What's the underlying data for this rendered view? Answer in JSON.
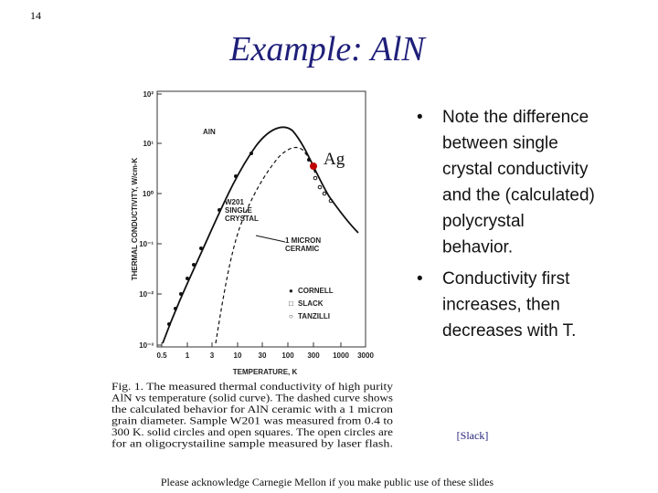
{
  "slide_number": "14",
  "title": "Example: AlN",
  "figure": {
    "y_axis_label": "THERMAL CONDUCTIVITY, W/cm-K",
    "x_axis_label": "TEMPERATURE, K",
    "y_tick_labels": [
      "10²",
      "10¹",
      "10⁰",
      "10⁻¹",
      "10⁻²",
      "10⁻³"
    ],
    "x_tick_labels": [
      "0.5",
      "1",
      "3",
      "10",
      "30",
      "100",
      "300",
      "1000",
      "3000"
    ],
    "annotations": {
      "material": "AlN",
      "single_crystal": [
        "W201",
        "SINGLE",
        "CRYSTAL"
      ],
      "ceramic": [
        "1 MICRON",
        "CERAMIC"
      ],
      "marker": "Ag"
    },
    "legend": [
      "CORNELL",
      "SLACK",
      "TANZILLI"
    ],
    "caption": [
      "Fig. 1. The measured thermal conductivity of high purity",
      "AlN vs temperature (solid curve). The dashed curve shows",
      "the calculated behavior for AlN ceramic with a 1 micron",
      "grain diameter. Sample W201 was measured from 0.4 to",
      "300 K. solid circles and open squares. The open circles are",
      "for an oligocrystailine sample measured by laser flash."
    ]
  },
  "bullets": [
    [
      "Note the difference",
      "between single",
      "crystal conductivity",
      "and the (calculated)",
      "polycrystal",
      "behavior."
    ],
    [
      "Conductivity first",
      "increases, then",
      "decreases with T."
    ]
  ],
  "citation": "[Slack]",
  "footer": "Please acknowledge Carnegie Mellon if you make public use of these slides"
}
